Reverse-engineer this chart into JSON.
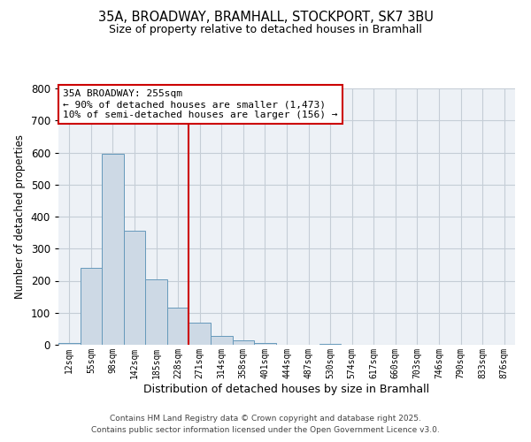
{
  "title": "35A, BROADWAY, BRAMHALL, STOCKPORT, SK7 3BU",
  "subtitle": "Size of property relative to detached houses in Bramhall",
  "xlabel": "Distribution of detached houses by size in Bramhall",
  "ylabel": "Number of detached properties",
  "bar_labels": [
    "12sqm",
    "55sqm",
    "98sqm",
    "142sqm",
    "185sqm",
    "228sqm",
    "271sqm",
    "314sqm",
    "358sqm",
    "401sqm",
    "444sqm",
    "487sqm",
    "530sqm",
    "574sqm",
    "617sqm",
    "660sqm",
    "703sqm",
    "746sqm",
    "790sqm",
    "833sqm",
    "876sqm"
  ],
  "bar_values": [
    5,
    240,
    595,
    355,
    205,
    115,
    70,
    28,
    15,
    5,
    0,
    0,
    2,
    0,
    0,
    0,
    0,
    0,
    0,
    0,
    0
  ],
  "bar_color": "#cdd9e5",
  "bar_edge_color": "#6699bb",
  "vline_color": "#cc0000",
  "annotation_text": "35A BROADWAY: 255sqm\n← 90% of detached houses are smaller (1,473)\n10% of semi-detached houses are larger (156) →",
  "annotation_box_color": "#cc0000",
  "ylim": [
    0,
    800
  ],
  "yticks": [
    0,
    100,
    200,
    300,
    400,
    500,
    600,
    700,
    800
  ],
  "bg_color": "#edf1f6",
  "grid_color": "#c5cdd6",
  "footer_line1": "Contains HM Land Registry data © Crown copyright and database right 2025.",
  "footer_line2": "Contains public sector information licensed under the Open Government Licence v3.0."
}
